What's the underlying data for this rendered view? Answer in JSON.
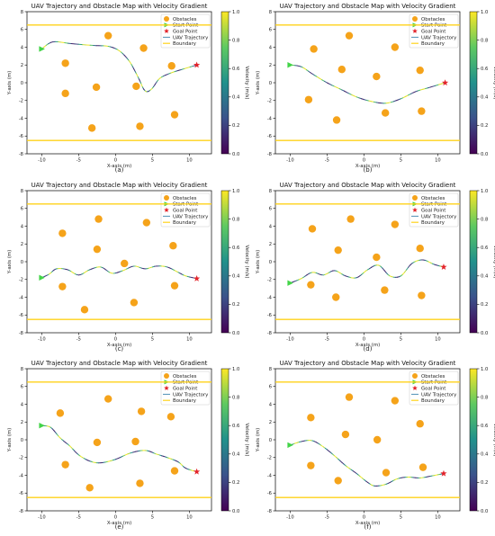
{
  "colors": {
    "obstacle": "#f5a31a",
    "start": "#43d448",
    "goal": "#e3242b",
    "boundary": "#ffd21a",
    "viridis": [
      "#440154",
      "#3b528b",
      "#21918c",
      "#5ec962",
      "#fde725"
    ]
  },
  "chart_data": [
    {
      "type": "scatter",
      "caption": "(a)",
      "title": "UAV Trajectory and Obstacle Map with Velocity Gradient",
      "xlabel": "X-axis (m)",
      "ylabel": "Y-axis (m)",
      "colorbar_label": "Velocity (m/s)",
      "xlim": [
        -12,
        13
      ],
      "ylim": [
        -8,
        8
      ],
      "xticks": [
        -10,
        -5,
        0,
        5,
        10
      ],
      "yticks": [
        -8,
        -6,
        -4,
        -2,
        0,
        2,
        4,
        6,
        8
      ],
      "colorbar_ticks": [
        0.0,
        0.2,
        0.4,
        0.6,
        0.8,
        1.0
      ],
      "boundary_y": [
        6.5,
        -6.5
      ],
      "legend": [
        "Obstacles",
        "Start Point",
        "Goal Point",
        "UAV Trajectory",
        "Boundary"
      ],
      "legend_position": "top-right",
      "grid": false,
      "start": [
        -10,
        3.8
      ],
      "goal": [
        11,
        2
      ],
      "obstacles": [
        [
          -6.8,
          2.2
        ],
        [
          -6.8,
          -1.2
        ],
        [
          -1,
          5.3
        ],
        [
          -2.6,
          -0.5
        ],
        [
          3.8,
          3.9
        ],
        [
          2.8,
          -0.4
        ],
        [
          7.6,
          1.9
        ],
        [
          8,
          -3.6
        ],
        [
          3.3,
          -4.9
        ],
        [
          -3.2,
          -5.1
        ]
      ],
      "trajectory": [
        [
          -10,
          3.8
        ],
        [
          -8.5,
          4.6
        ],
        [
          -6,
          4.4
        ],
        [
          -3,
          4.2
        ],
        [
          -1,
          4.1
        ],
        [
          0.5,
          3.6
        ],
        [
          1.8,
          2.5
        ],
        [
          2.7,
          1.2
        ],
        [
          3.3,
          0.2
        ],
        [
          3.8,
          -0.7
        ],
        [
          4.3,
          -1.0
        ],
        [
          5,
          -0.6
        ],
        [
          6,
          0.5
        ],
        [
          7.5,
          1.1
        ],
        [
          9,
          1.5
        ],
        [
          11,
          2
        ]
      ]
    },
    {
      "type": "scatter",
      "caption": "(b)",
      "title": "UAV Trajectory and Obstacle Map with Velocity Gradient",
      "xlabel": "X-axis (m)",
      "ylabel": "Y-axis (m)",
      "colorbar_label": "Velocity (m/s)",
      "xlim": [
        -12,
        13
      ],
      "ylim": [
        -8,
        8
      ],
      "xticks": [
        -10,
        -5,
        0,
        5,
        10
      ],
      "yticks": [
        -8,
        -6,
        -4,
        -2,
        0,
        2,
        4,
        6,
        8
      ],
      "colorbar_ticks": [
        0.0,
        0.2,
        0.4,
        0.6,
        0.8,
        1.0
      ],
      "boundary_y": [
        6.5,
        -6.5
      ],
      "legend": [
        "Obstacles",
        "Start Point",
        "Goal Point",
        "UAV Trajectory",
        "Boundary"
      ],
      "legend_position": "top-right",
      "grid": false,
      "start": [
        -10,
        2
      ],
      "goal": [
        11,
        0
      ],
      "obstacles": [
        [
          -6.8,
          3.8
        ],
        [
          -7.5,
          -1.9
        ],
        [
          -2,
          5.3
        ],
        [
          -3,
          1.5
        ],
        [
          4.2,
          4
        ],
        [
          1.7,
          0.7
        ],
        [
          7.6,
          1.4
        ],
        [
          7.8,
          -3.2
        ],
        [
          2.9,
          -3.4
        ],
        [
          -3.7,
          -4.2
        ]
      ],
      "trajectory": [
        [
          -10,
          2
        ],
        [
          -8.5,
          1.8
        ],
        [
          -7,
          1.0
        ],
        [
          -5,
          0
        ],
        [
          -3,
          -0.8
        ],
        [
          -1,
          -1.6
        ],
        [
          1,
          -2.1
        ],
        [
          3,
          -2.3
        ],
        [
          5,
          -1.8
        ],
        [
          7,
          -1.0
        ],
        [
          9,
          -0.5
        ],
        [
          11,
          0
        ]
      ]
    },
    {
      "type": "scatter",
      "caption": "(c)",
      "title": "UAV Trajectory and Obstacle Map with Velocity Gradient",
      "xlabel": "X-axis (m)",
      "ylabel": "Y-axis (m)",
      "colorbar_label": "Velocity (m/s)",
      "xlim": [
        -12,
        13
      ],
      "ylim": [
        -8,
        8
      ],
      "xticks": [
        -10,
        -5,
        0,
        5,
        10
      ],
      "yticks": [
        -8,
        -6,
        -4,
        -2,
        0,
        2,
        4,
        6,
        8
      ],
      "colorbar_ticks": [
        0.0,
        0.2,
        0.4,
        0.6,
        0.8,
        1.0
      ],
      "boundary_y": [
        6.5,
        -6.5
      ],
      "legend": [
        "Obstacles",
        "Start Point",
        "Goal Point",
        "UAV Trajectory",
        "Boundary"
      ],
      "legend_position": "top-right",
      "grid": false,
      "start": [
        -10,
        -1.8
      ],
      "goal": [
        11,
        -1.9
      ],
      "obstacles": [
        [
          -7.2,
          3.2
        ],
        [
          -7.2,
          -2.8
        ],
        [
          -2.3,
          4.8
        ],
        [
          -2.5,
          1.4
        ],
        [
          4.2,
          4.4
        ],
        [
          1.2,
          -0.2
        ],
        [
          7.8,
          1.8
        ],
        [
          8,
          -2.7
        ],
        [
          2.5,
          -4.6
        ],
        [
          -4.2,
          -5.4
        ]
      ],
      "trajectory": [
        [
          -10,
          -1.8
        ],
        [
          -9,
          -1.4
        ],
        [
          -8,
          -0.8
        ],
        [
          -6.5,
          -0.9
        ],
        [
          -5,
          -1.5
        ],
        [
          -3.5,
          -0.9
        ],
        [
          -2,
          -0.6
        ],
        [
          -0.5,
          -1.3
        ],
        [
          1,
          -1.0
        ],
        [
          2.5,
          -0.5
        ],
        [
          4,
          -0.8
        ],
        [
          5.5,
          -0.5
        ],
        [
          7,
          -0.6
        ],
        [
          8.5,
          -1.2
        ],
        [
          9.5,
          -1.6
        ],
        [
          11,
          -1.9
        ]
      ]
    },
    {
      "type": "scatter",
      "caption": "(d)",
      "title": "UAV Trajectory and Obstacle Map with Velocity Gradient",
      "xlabel": "X-axis (m)",
      "ylabel": "Y-axis (m)",
      "colorbar_label": "Velocity (m/s)",
      "xlim": [
        -12,
        13
      ],
      "ylim": [
        -8,
        8
      ],
      "xticks": [
        -10,
        -5,
        0,
        5,
        10
      ],
      "yticks": [
        -8,
        -6,
        -4,
        -2,
        0,
        2,
        4,
        6,
        8
      ],
      "colorbar_ticks": [
        0.0,
        0.2,
        0.4,
        0.6,
        0.8,
        1.0
      ],
      "boundary_y": [
        6.5,
        -6.5
      ],
      "legend": [
        "Obstacles",
        "Start Point",
        "Goal Point",
        "UAV Trajectory",
        "Boundary"
      ],
      "legend_position": "top-right",
      "grid": false,
      "start": [
        -10,
        -2.4
      ],
      "goal": [
        10.8,
        -0.6
      ],
      "obstacles": [
        [
          -7,
          3.7
        ],
        [
          -7.2,
          -2.6
        ],
        [
          -1.8,
          4.8
        ],
        [
          -3.5,
          1.3
        ],
        [
          4.2,
          4.2
        ],
        [
          1.7,
          0.5
        ],
        [
          7.6,
          1.5
        ],
        [
          7.8,
          -3.8
        ],
        [
          2.8,
          -3.2
        ],
        [
          -3.8,
          -4
        ]
      ],
      "trajectory": [
        [
          -10,
          -2.4
        ],
        [
          -8.5,
          -1.9
        ],
        [
          -7,
          -1.2
        ],
        [
          -5.5,
          -1.5
        ],
        [
          -4,
          -1.0
        ],
        [
          -2.5,
          -1.6
        ],
        [
          -1,
          -1.8
        ],
        [
          0.5,
          -0.9
        ],
        [
          2,
          -0.4
        ],
        [
          3.5,
          -1.6
        ],
        [
          5,
          -1.6
        ],
        [
          6.5,
          -0.2
        ],
        [
          8,
          0.2
        ],
        [
          9.5,
          -0.3
        ],
        [
          10.8,
          -0.6
        ]
      ]
    },
    {
      "type": "scatter",
      "caption": "(e)",
      "title": "UAV Trajectory and Obstacle Map with Velocity Gradient",
      "xlabel": "X-axis (m)",
      "ylabel": "Y-axis (m)",
      "colorbar_label": "Velocity (m/s)",
      "xlim": [
        -12,
        13
      ],
      "ylim": [
        -8,
        8
      ],
      "xticks": [
        -10,
        -5,
        0,
        5,
        10
      ],
      "yticks": [
        -8,
        -6,
        -4,
        -2,
        0,
        2,
        4,
        6,
        8
      ],
      "colorbar_ticks": [
        0.0,
        0.2,
        0.4,
        0.6,
        0.8,
        1.0
      ],
      "boundary_y": [
        6.5,
        -6.5
      ],
      "legend": [
        "Obstacles",
        "Start Point",
        "Goal Point",
        "UAV Trajectory",
        "Boundary"
      ],
      "legend_position": "top-right",
      "grid": false,
      "start": [
        -10,
        1.6
      ],
      "goal": [
        11,
        -3.6
      ],
      "obstacles": [
        [
          -7.5,
          3
        ],
        [
          -6.8,
          -2.8
        ],
        [
          -1,
          4.6
        ],
        [
          -2.5,
          -0.3
        ],
        [
          3.5,
          3.2
        ],
        [
          2.7,
          -0.2
        ],
        [
          7.5,
          2.6
        ],
        [
          8,
          -3.5
        ],
        [
          3.3,
          -4.9
        ],
        [
          -3.5,
          -5.4
        ]
      ],
      "trajectory": [
        [
          -10,
          1.6
        ],
        [
          -8.8,
          1.4
        ],
        [
          -7.5,
          0.2
        ],
        [
          -6.2,
          -0.7
        ],
        [
          -5,
          -1.7
        ],
        [
          -3.5,
          -2.4
        ],
        [
          -2,
          -2.6
        ],
        [
          0,
          -2.2
        ],
        [
          2,
          -1.5
        ],
        [
          4,
          -1.2
        ],
        [
          5.5,
          -1.6
        ],
        [
          7,
          -2.0
        ],
        [
          8.5,
          -2.5
        ],
        [
          9.5,
          -3.2
        ],
        [
          11,
          -3.6
        ]
      ]
    },
    {
      "type": "scatter",
      "caption": "(f)",
      "title": "UAV Trajectory and Obstacle Map with Velocity Gradient",
      "xlabel": "X-axis (m)",
      "ylabel": "Y-axis (m)",
      "colorbar_label": "Velocity (m/s)",
      "xlim": [
        -12,
        13
      ],
      "ylim": [
        -8,
        8
      ],
      "xticks": [
        -10,
        -5,
        0,
        5,
        10
      ],
      "yticks": [
        -8,
        -6,
        -4,
        -2,
        0,
        2,
        4,
        6,
        8
      ],
      "colorbar_ticks": [
        0.0,
        0.2,
        0.4,
        0.6,
        0.8,
        1.0
      ],
      "boundary_y": [
        6.5,
        -6.5
      ],
      "legend": [
        "Obstacles",
        "Start Point",
        "Goal Point",
        "UAV Trajectory",
        "Boundary"
      ],
      "legend_position": "top-right",
      "grid": false,
      "start": [
        -10,
        -0.6
      ],
      "goal": [
        10.8,
        -3.8
      ],
      "obstacles": [
        [
          -7.2,
          2.5
        ],
        [
          -7.2,
          -2.9
        ],
        [
          -2,
          4.8
        ],
        [
          -2.5,
          0.6
        ],
        [
          4.2,
          4.4
        ],
        [
          1.8,
          0
        ],
        [
          7.6,
          1.8
        ],
        [
          8,
          -3.1
        ],
        [
          3,
          -3.7
        ],
        [
          -3.5,
          -4.6
        ]
      ],
      "trajectory": [
        [
          -10,
          -0.6
        ],
        [
          -8.5,
          -0.2
        ],
        [
          -7,
          -0.1
        ],
        [
          -5.5,
          -0.8
        ],
        [
          -4,
          -1.8
        ],
        [
          -2.5,
          -2.9
        ],
        [
          -1,
          -3.8
        ],
        [
          0.5,
          -4.8
        ],
        [
          1.5,
          -5.2
        ],
        [
          3,
          -5.0
        ],
        [
          4.5,
          -4.4
        ],
        [
          6,
          -4.2
        ],
        [
          7.5,
          -4.3
        ],
        [
          9,
          -4.1
        ],
        [
          10.8,
          -3.8
        ]
      ]
    }
  ]
}
